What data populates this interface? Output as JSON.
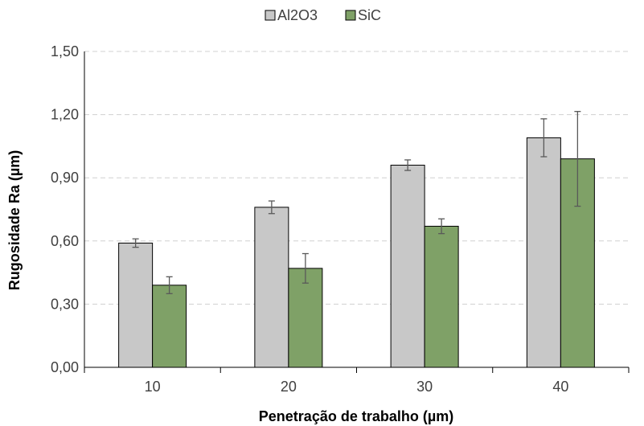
{
  "chart_data": {
    "type": "bar",
    "title": "",
    "xlabel": "Penetração de trabalho (µm)",
    "ylabel": "Rugosidade Ra (µm)",
    "categories": [
      "10",
      "20",
      "30",
      "40"
    ],
    "ylim": [
      0,
      1.5
    ],
    "yticks": [
      "0,00",
      "0,30",
      "0,60",
      "0,90",
      "1,20",
      "1,50"
    ],
    "grid": true,
    "legend_position": "top",
    "series": [
      {
        "name": "Al2O3",
        "color": "#c8c8c8",
        "values": [
          0.59,
          0.76,
          0.96,
          1.09
        ],
        "errors": [
          0.02,
          0.03,
          0.025,
          0.09
        ]
      },
      {
        "name": "SiC",
        "color": "#7fa167",
        "values": [
          0.39,
          0.47,
          0.67,
          0.99
        ],
        "errors": [
          0.04,
          0.07,
          0.035,
          0.225
        ]
      }
    ]
  }
}
